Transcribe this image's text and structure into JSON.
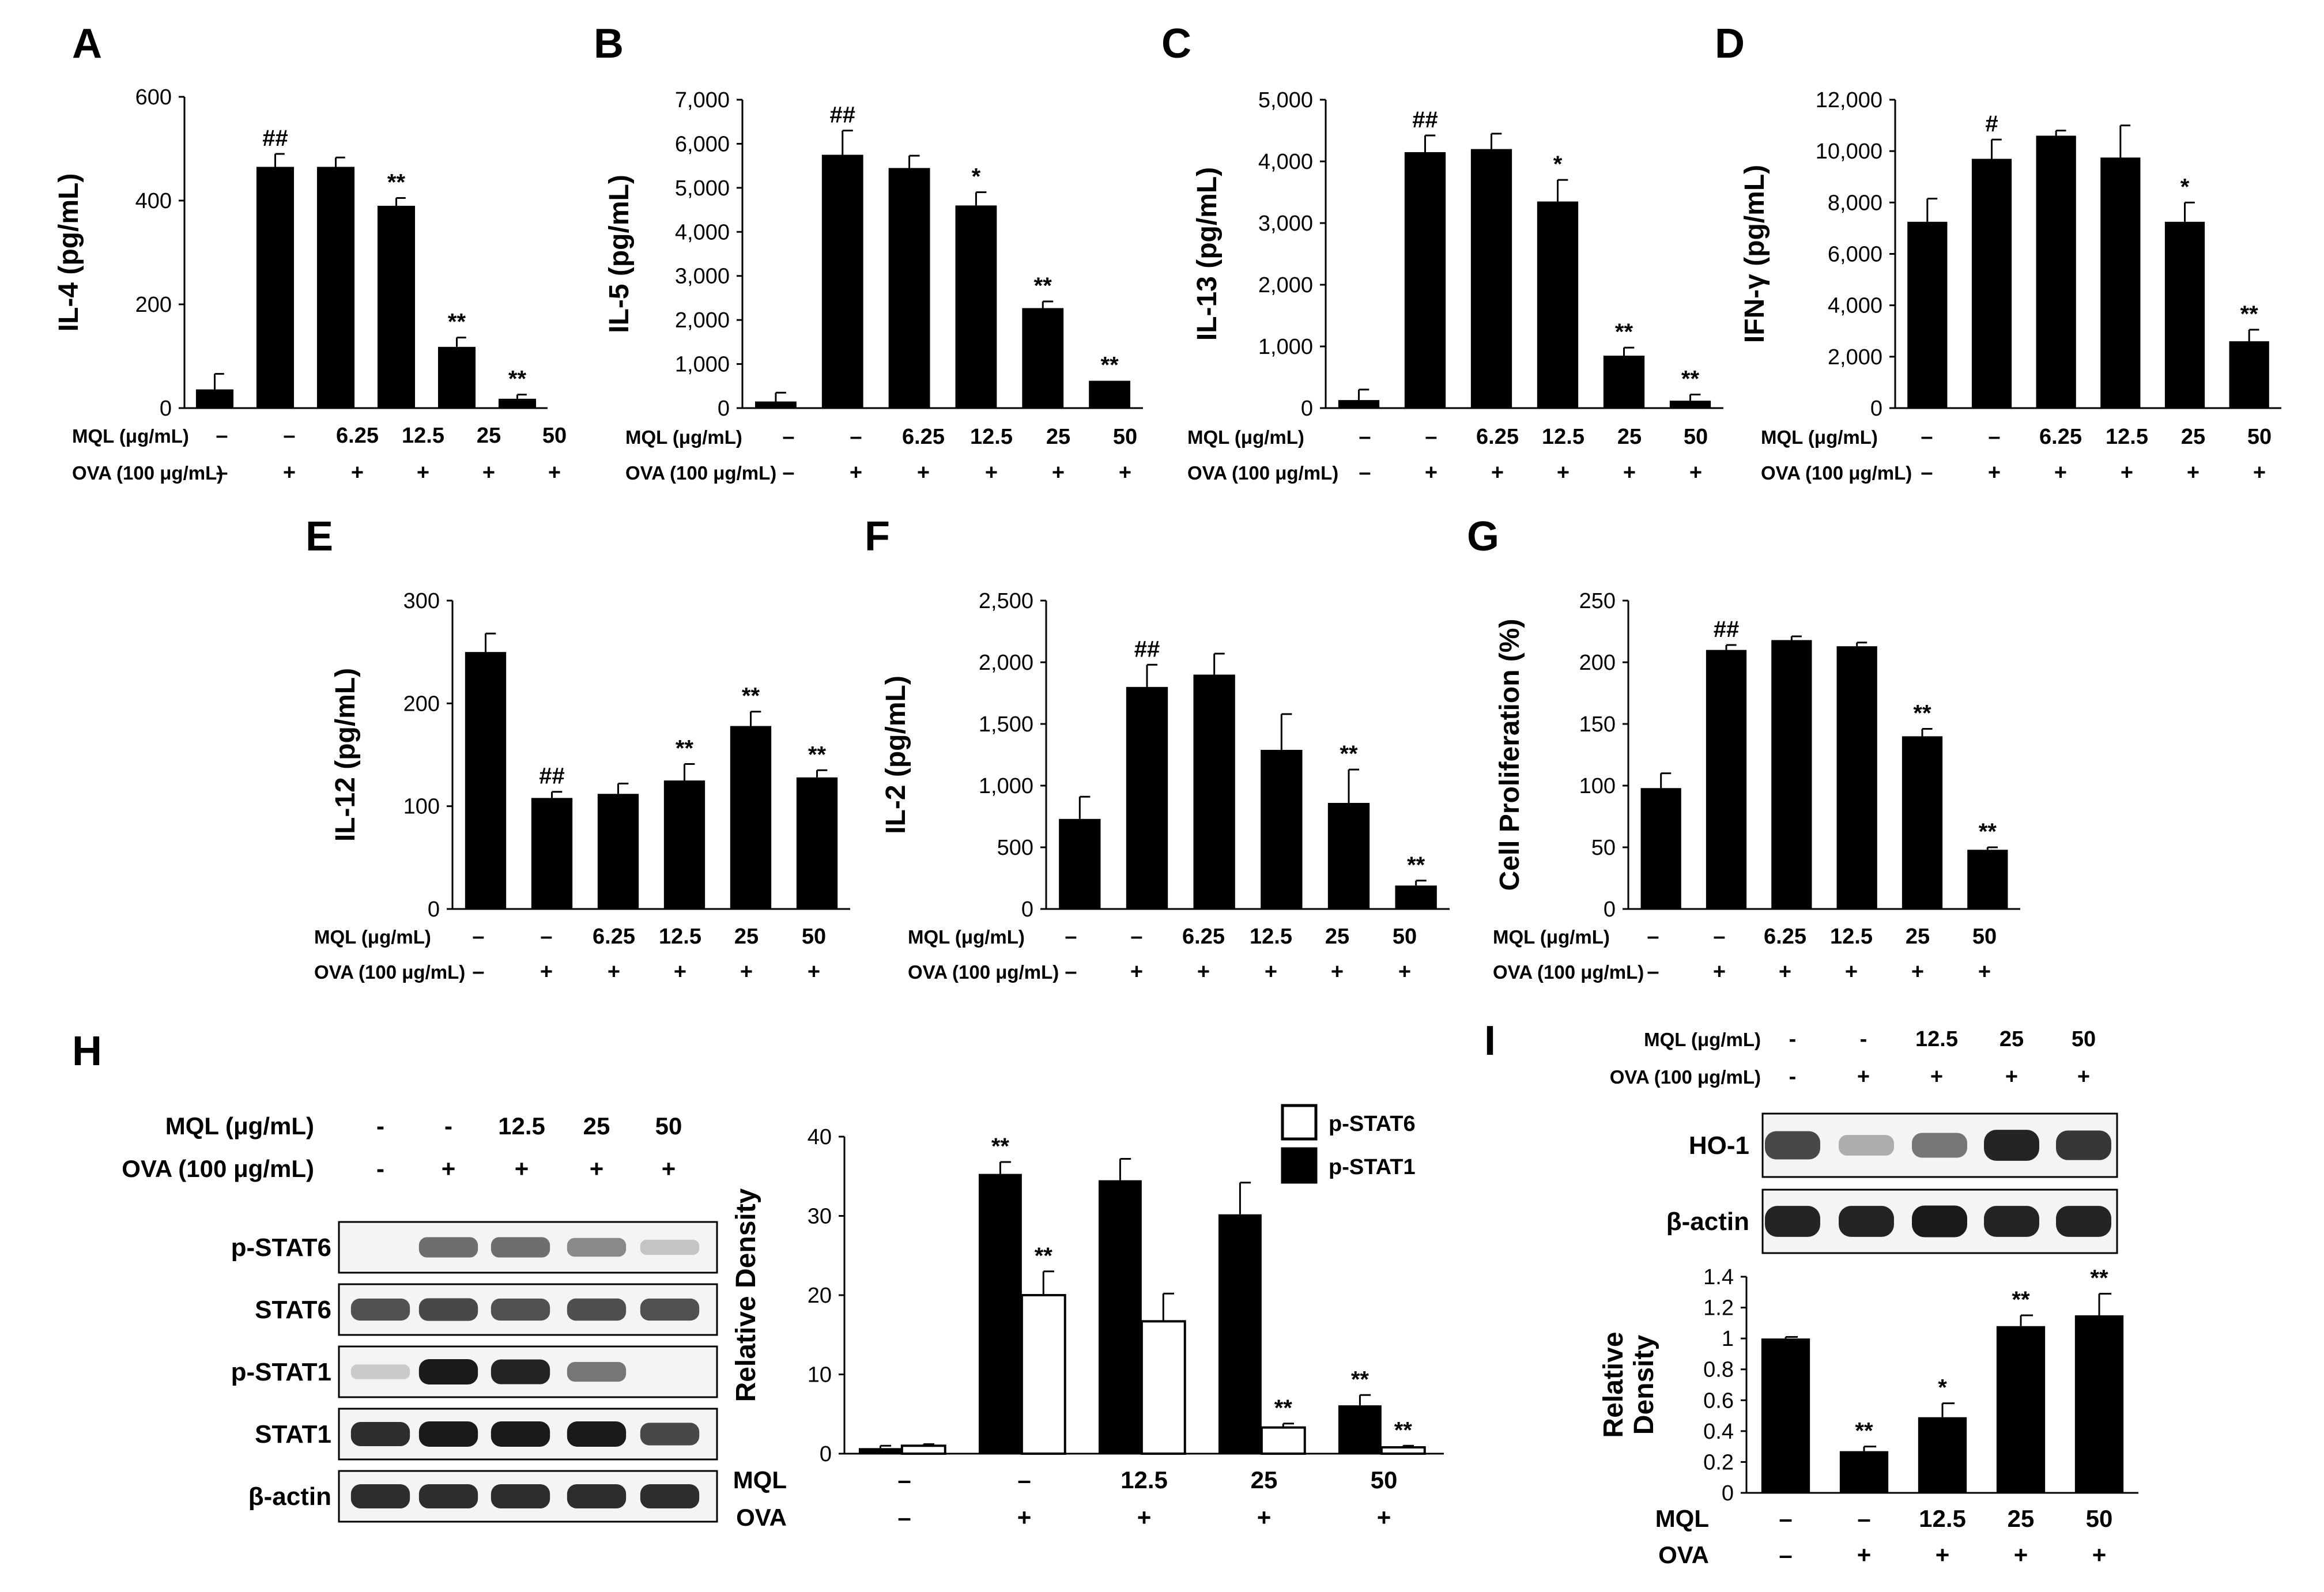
{
  "figure": {
    "background": "#ffffff",
    "bar_dark": "#000000",
    "bar_light": "#ffffff",
    "band_color": "#1a1a1a"
  },
  "chart_data": [
    {
      "panel": "A",
      "type": "bar",
      "ylabel": "IL-4 (pg/mL)",
      "ylim": [
        0,
        600
      ],
      "yticks": [
        "0",
        "200",
        "400",
        "600"
      ],
      "rows": [
        {
          "label": "MQL (μg/mL)",
          "values": [
            "–",
            "–",
            "6.25",
            "12.5",
            "25",
            "50"
          ]
        },
        {
          "label": "OVA (100 μg/mL)",
          "values": [
            "–",
            "+",
            "+",
            "+",
            "+",
            "+"
          ]
        }
      ],
      "series": [
        {
          "name": "IL-4",
          "values": [
            36,
            465,
            465,
            390,
            118,
            18
          ],
          "errors": [
            30,
            25,
            18,
            15,
            18,
            8
          ],
          "marks": [
            "",
            "##",
            "",
            "**",
            "**",
            "**"
          ]
        }
      ]
    },
    {
      "panel": "B",
      "type": "bar",
      "ylabel": "IL-5 (pg/mL)",
      "ylim": [
        0,
        7000
      ],
      "yticks": [
        "0",
        "1,000",
        "2,000",
        "3,000",
        "4,000",
        "5,000",
        "6,000",
        "7,000"
      ],
      "rows": [
        {
          "label": "MQL (μg/mL)",
          "values": [
            "–",
            "–",
            "6.25",
            "12.5",
            "25",
            "50"
          ]
        },
        {
          "label": "OVA (100 μg/mL)",
          "values": [
            "–",
            "+",
            "+",
            "+",
            "+",
            "+"
          ]
        }
      ],
      "series": [
        {
          "name": "IL-5",
          "values": [
            150,
            5750,
            5450,
            4600,
            2270,
            620
          ],
          "errors": [
            200,
            550,
            280,
            300,
            150,
            0
          ],
          "marks": [
            "",
            "##",
            "",
            "*",
            "**",
            "**"
          ]
        }
      ]
    },
    {
      "panel": "C",
      "type": "bar",
      "ylabel": "IL-13 (pg/mL)",
      "ylim": [
        0,
        5000
      ],
      "yticks": [
        "0",
        "1,000",
        "2,000",
        "3,000",
        "4,000",
        "5,000"
      ],
      "rows": [
        {
          "label": "MQL (μg/mL)",
          "values": [
            "–",
            "–",
            "6.25",
            "12.5",
            "25",
            "50"
          ]
        },
        {
          "label": "OVA (100 μg/mL)",
          "values": [
            "–",
            "+",
            "+",
            "+",
            "+",
            "+"
          ]
        }
      ],
      "series": [
        {
          "name": "IL-13",
          "values": [
            130,
            4150,
            4200,
            3350,
            850,
            120
          ],
          "errors": [
            170,
            270,
            250,
            350,
            130,
            100
          ],
          "marks": [
            "",
            "##",
            "",
            "*",
            "**",
            "**"
          ]
        }
      ]
    },
    {
      "panel": "D",
      "type": "bar",
      "ylabel": "IFN-γ (pg/mL)",
      "ylim": [
        0,
        12000
      ],
      "yticks": [
        "0",
        "2,000",
        "4,000",
        "6,000",
        "8,000",
        "10,000",
        "12,000"
      ],
      "rows": [
        {
          "label": "MQL (μg/mL)",
          "values": [
            "–",
            "–",
            "6.25",
            "12.5",
            "25",
            "50"
          ]
        },
        {
          "label": "OVA (100 μg/mL)",
          "values": [
            "–",
            "+",
            "+",
            "+",
            "+",
            "+"
          ]
        }
      ],
      "series": [
        {
          "name": "IFN-γ",
          "values": [
            7250,
            9700,
            10600,
            9750,
            7250,
            2600
          ],
          "errors": [
            900,
            750,
            200,
            1250,
            750,
            450
          ],
          "marks": [
            "",
            "#",
            "",
            "",
            "*",
            "**"
          ]
        }
      ]
    },
    {
      "panel": "E",
      "type": "bar",
      "ylabel": "IL-12 (pg/mL)",
      "ylim": [
        0,
        300
      ],
      "yticks": [
        "0",
        "100",
        "200",
        "300"
      ],
      "rows": [
        {
          "label": "MQL (μg/mL)",
          "values": [
            "–",
            "–",
            "6.25",
            "12.5",
            "25",
            "50"
          ]
        },
        {
          "label": "OVA (100 μg/mL)",
          "values": [
            "–",
            "+",
            "+",
            "+",
            "+",
            "+"
          ]
        }
      ],
      "series": [
        {
          "name": "IL-12",
          "values": [
            250,
            108,
            112,
            125,
            178,
            128
          ],
          "errors": [
            18,
            6,
            10,
            16,
            14,
            7
          ],
          "marks": [
            "",
            "##",
            "",
            "**",
            "**",
            "**"
          ]
        }
      ]
    },
    {
      "panel": "F",
      "type": "bar",
      "ylabel": "IL-2 (pg/mL)",
      "ylim": [
        0,
        2500
      ],
      "yticks": [
        "0",
        "500",
        "1,000",
        "1,500",
        "2,000",
        "2,500"
      ],
      "rows": [
        {
          "label": "MQL (μg/mL)",
          "values": [
            "–",
            "–",
            "6.25",
            "12.5",
            "25",
            "50"
          ]
        },
        {
          "label": "OVA (100 μg/mL)",
          "values": [
            "–",
            "+",
            "+",
            "+",
            "+",
            "+"
          ]
        }
      ],
      "series": [
        {
          "name": "IL-2",
          "values": [
            730,
            1800,
            1900,
            1290,
            860,
            190
          ],
          "errors": [
            180,
            180,
            170,
            290,
            270,
            40
          ],
          "marks": [
            "",
            "##",
            "",
            "",
            "**",
            "**"
          ]
        }
      ]
    },
    {
      "panel": "G",
      "type": "bar",
      "ylabel": "Cell Proliferation (%)",
      "ylim": [
        0,
        250
      ],
      "yticks": [
        "0",
        "50",
        "100",
        "150",
        "200",
        "250"
      ],
      "rows": [
        {
          "label": "MQL (μg/mL)",
          "values": [
            "–",
            "–",
            "6.25",
            "12.5",
            "25",
            "50"
          ]
        },
        {
          "label": "OVA (100 μg/mL)",
          "values": [
            "–",
            "+",
            "+",
            "+",
            "+",
            "+"
          ]
        }
      ],
      "series": [
        {
          "name": "Cell Proliferation",
          "values": [
            98,
            210,
            218,
            213,
            140,
            48
          ],
          "errors": [
            12,
            4,
            3,
            3,
            6,
            2
          ],
          "marks": [
            "",
            "##",
            "",
            "",
            "**",
            "**"
          ]
        }
      ]
    },
    {
      "panel": "H",
      "type": "bar",
      "ylabel": "Relative Density",
      "ylim": [
        0,
        40
      ],
      "yticks": [
        "0",
        "10",
        "20",
        "30",
        "40"
      ],
      "rows": [
        {
          "label": "MQL",
          "values": [
            "–",
            "–",
            "12.5",
            "25",
            "50"
          ]
        },
        {
          "label": "OVA",
          "values": [
            "–",
            "+",
            "+",
            "+",
            "+"
          ]
        }
      ],
      "series": [
        {
          "name": "p-STAT1",
          "fill": "dark",
          "values": [
            0.7,
            35.3,
            34.5,
            30.2,
            6.1
          ],
          "errors": [
            0.3,
            1.5,
            2.7,
            4.0,
            1.3
          ],
          "marks": [
            "",
            "**",
            "",
            "",
            "**"
          ]
        },
        {
          "name": "p-STAT6",
          "fill": "light",
          "values": [
            1.0,
            20.0,
            16.7,
            3.3,
            0.8
          ],
          "errors": [
            0.2,
            3.0,
            3.5,
            0.5,
            0.2
          ],
          "marks": [
            "",
            "**",
            "",
            "**",
            "**"
          ]
        }
      ],
      "legend": [
        "p-STAT6",
        "p-STAT1"
      ]
    },
    {
      "panel": "I",
      "type": "bar",
      "ylabel": "Relative Density",
      "ylim": [
        0,
        1.4
      ],
      "yticks": [
        "0",
        "0.2",
        "0.4",
        "0.6",
        "0.8",
        "1",
        "1.2",
        "1.4"
      ],
      "rows": [
        {
          "label": "MQL",
          "values": [
            "–",
            "–",
            "12.5",
            "25",
            "50"
          ]
        },
        {
          "label": "OVA",
          "values": [
            "–",
            "+",
            "+",
            "+",
            "+"
          ]
        }
      ],
      "series": [
        {
          "name": "HO-1",
          "values": [
            1.0,
            0.27,
            0.49,
            1.08,
            1.15
          ],
          "errors": [
            0.01,
            0.03,
            0.09,
            0.07,
            0.14
          ],
          "marks": [
            "",
            "**",
            "*",
            "**",
            "**"
          ]
        }
      ]
    }
  ],
  "blots": {
    "H": {
      "header": [
        {
          "label": "MQL (μg/mL)",
          "values": [
            "-",
            "-",
            "12.5",
            "25",
            "50"
          ]
        },
        {
          "label": "OVA (100 μg/mL)",
          "values": [
            "-",
            "+",
            "+",
            "+",
            "+"
          ]
        }
      ],
      "rows": [
        {
          "label": "p-STAT6",
          "intensity": [
            0,
            0.55,
            0.55,
            0.4,
            0.08
          ]
        },
        {
          "label": "STAT6",
          "intensity": [
            0.7,
            0.75,
            0.7,
            0.72,
            0.7
          ]
        },
        {
          "label": "p-STAT1",
          "intensity": [
            0.05,
            1.0,
            0.95,
            0.5,
            0.0
          ]
        },
        {
          "label": "STAT1",
          "intensity": [
            0.9,
            1.0,
            1.0,
            1.0,
            0.75
          ]
        },
        {
          "label": "β-actin",
          "intensity": [
            0.9,
            0.9,
            0.9,
            0.9,
            0.9
          ]
        }
      ]
    },
    "I": {
      "header": [
        {
          "label": "MQL (μg/mL)",
          "values": [
            "-",
            "-",
            "12.5",
            "25",
            "50"
          ]
        },
        {
          "label": "OVA (100 μg/mL)",
          "values": [
            "-",
            "+",
            "+",
            "+",
            "+"
          ]
        }
      ],
      "rows": [
        {
          "label": "HO-1",
          "intensity": [
            0.75,
            0.2,
            0.5,
            0.95,
            0.85
          ]
        },
        {
          "label": "β-actin",
          "intensity": [
            0.95,
            0.95,
            1.0,
            0.95,
            0.95
          ]
        }
      ]
    }
  }
}
